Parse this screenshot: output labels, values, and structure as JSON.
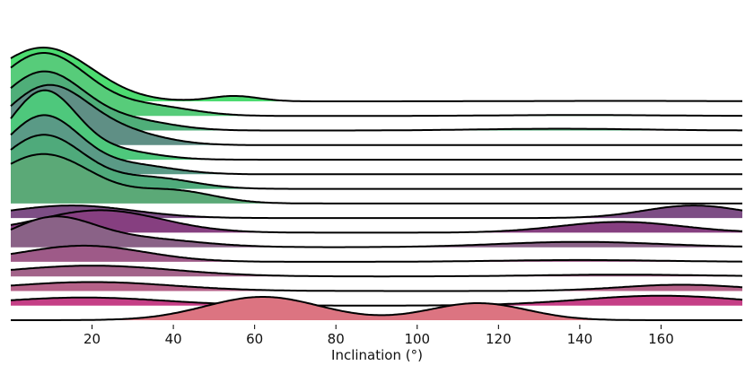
{
  "chart_data": {
    "type": "ridgeline",
    "title": "",
    "xlabel": "Inclination (°)",
    "ylabel": "",
    "xlim": [
      0,
      180
    ],
    "xticks": [
      20,
      40,
      60,
      80,
      100,
      120,
      140,
      160
    ],
    "grid": false,
    "legend": "none",
    "series": [
      {
        "color": "#4cdb70",
        "peaks": [
          [
            8,
            12,
            6
          ],
          [
            55,
            6,
            0.6
          ],
          [
            150,
            25,
            0.05
          ]
        ]
      },
      {
        "color": "#57cc7a",
        "peaks": [
          [
            8,
            11,
            7
          ],
          [
            35,
            10,
            1.0
          ],
          [
            140,
            20,
            0.1
          ]
        ]
      },
      {
        "color": "#4fae79",
        "peaks": [
          [
            8,
            10,
            6.5
          ],
          [
            30,
            10,
            1.0
          ],
          [
            135,
            20,
            0.2
          ]
        ]
      },
      {
        "color": "#5f8f85",
        "peaks": [
          [
            9,
            10,
            6.5
          ],
          [
            28,
            10,
            1.2
          ]
        ]
      },
      {
        "color": "#4ec87c",
        "peaks": [
          [
            8,
            8,
            7.5
          ],
          [
            25,
            10,
            1.0
          ]
        ]
      },
      {
        "color": "#5a9a86",
        "peaks": [
          [
            8,
            9,
            6.5
          ],
          [
            30,
            10,
            1.0
          ]
        ]
      },
      {
        "color": "#4faa7b",
        "peaks": [
          [
            8,
            10,
            6
          ],
          [
            35,
            10,
            1.2
          ]
        ]
      },
      {
        "color": "#5ba977",
        "peaks": [
          [
            8,
            12,
            5.5
          ],
          [
            40,
            10,
            1.4
          ]
        ]
      },
      {
        "color": "#7d4e85",
        "peaks": [
          [
            15,
            15,
            1.4
          ],
          [
            168,
            12,
            1.4
          ]
        ]
      },
      {
        "color": "#863f80",
        "peaks": [
          [
            22,
            15,
            2.5
          ],
          [
            150,
            15,
            1.2
          ]
        ]
      },
      {
        "color": "#8a6287",
        "peaks": [
          [
            10,
            10,
            3.0
          ],
          [
            30,
            15,
            1.0
          ],
          [
            140,
            20,
            0.6
          ]
        ]
      },
      {
        "color": "#9e5a88",
        "peaks": [
          [
            18,
            15,
            1.8
          ],
          [
            140,
            20,
            0.2
          ]
        ]
      },
      {
        "color": "#a3638a",
        "peaks": [
          [
            20,
            20,
            1.2
          ],
          [
            150,
            20,
            0.2
          ]
        ]
      },
      {
        "color": "#b56188",
        "peaks": [
          [
            20,
            20,
            1.0
          ],
          [
            165,
            15,
            0.7
          ]
        ]
      },
      {
        "color": "#c53f86",
        "peaks": [
          [
            18,
            20,
            0.9
          ],
          [
            160,
            20,
            1.1
          ]
        ]
      },
      {
        "color": "#dc7481",
        "peaks": [
          [
            62,
            14,
            2.6
          ],
          [
            115,
            12,
            1.9
          ]
        ]
      }
    ]
  }
}
